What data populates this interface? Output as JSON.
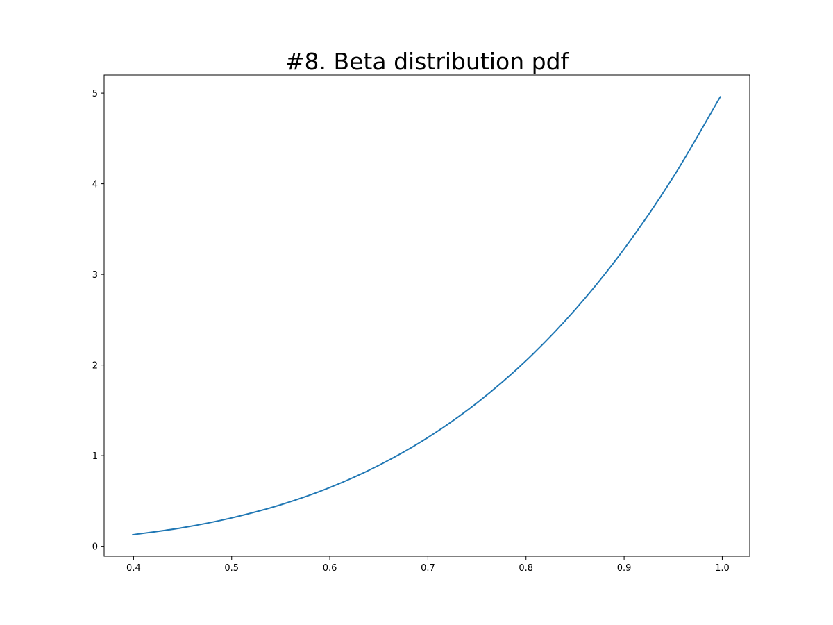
{
  "chart_data": {
    "type": "line",
    "title": "#8. Beta distribution pdf",
    "xlabel": "",
    "ylabel": "",
    "xlim": [
      0.37,
      1.028
    ],
    "ylim": [
      -0.11,
      5.2
    ],
    "xticks": [
      0.4,
      0.5,
      0.6,
      0.7,
      0.8,
      0.9,
      1.0
    ],
    "xtick_labels": [
      "0.4",
      "0.5",
      "0.6",
      "0.7",
      "0.8",
      "0.9",
      "1.0"
    ],
    "yticks": [
      0,
      1,
      2,
      3,
      4,
      5
    ],
    "ytick_labels": [
      "0",
      "1",
      "2",
      "3",
      "4",
      "5"
    ],
    "grid": false,
    "series": [
      {
        "color": "#1f77b4",
        "x": [
          0.399,
          0.45,
          0.5,
          0.55,
          0.6,
          0.65,
          0.7,
          0.75,
          0.8,
          0.85,
          0.9,
          0.95,
          0.998
        ],
        "y": [
          0.127,
          0.205,
          0.313,
          0.458,
          0.648,
          0.893,
          1.2,
          1.582,
          2.048,
          2.61,
          3.281,
          4.073,
          4.96
        ]
      }
    ]
  }
}
